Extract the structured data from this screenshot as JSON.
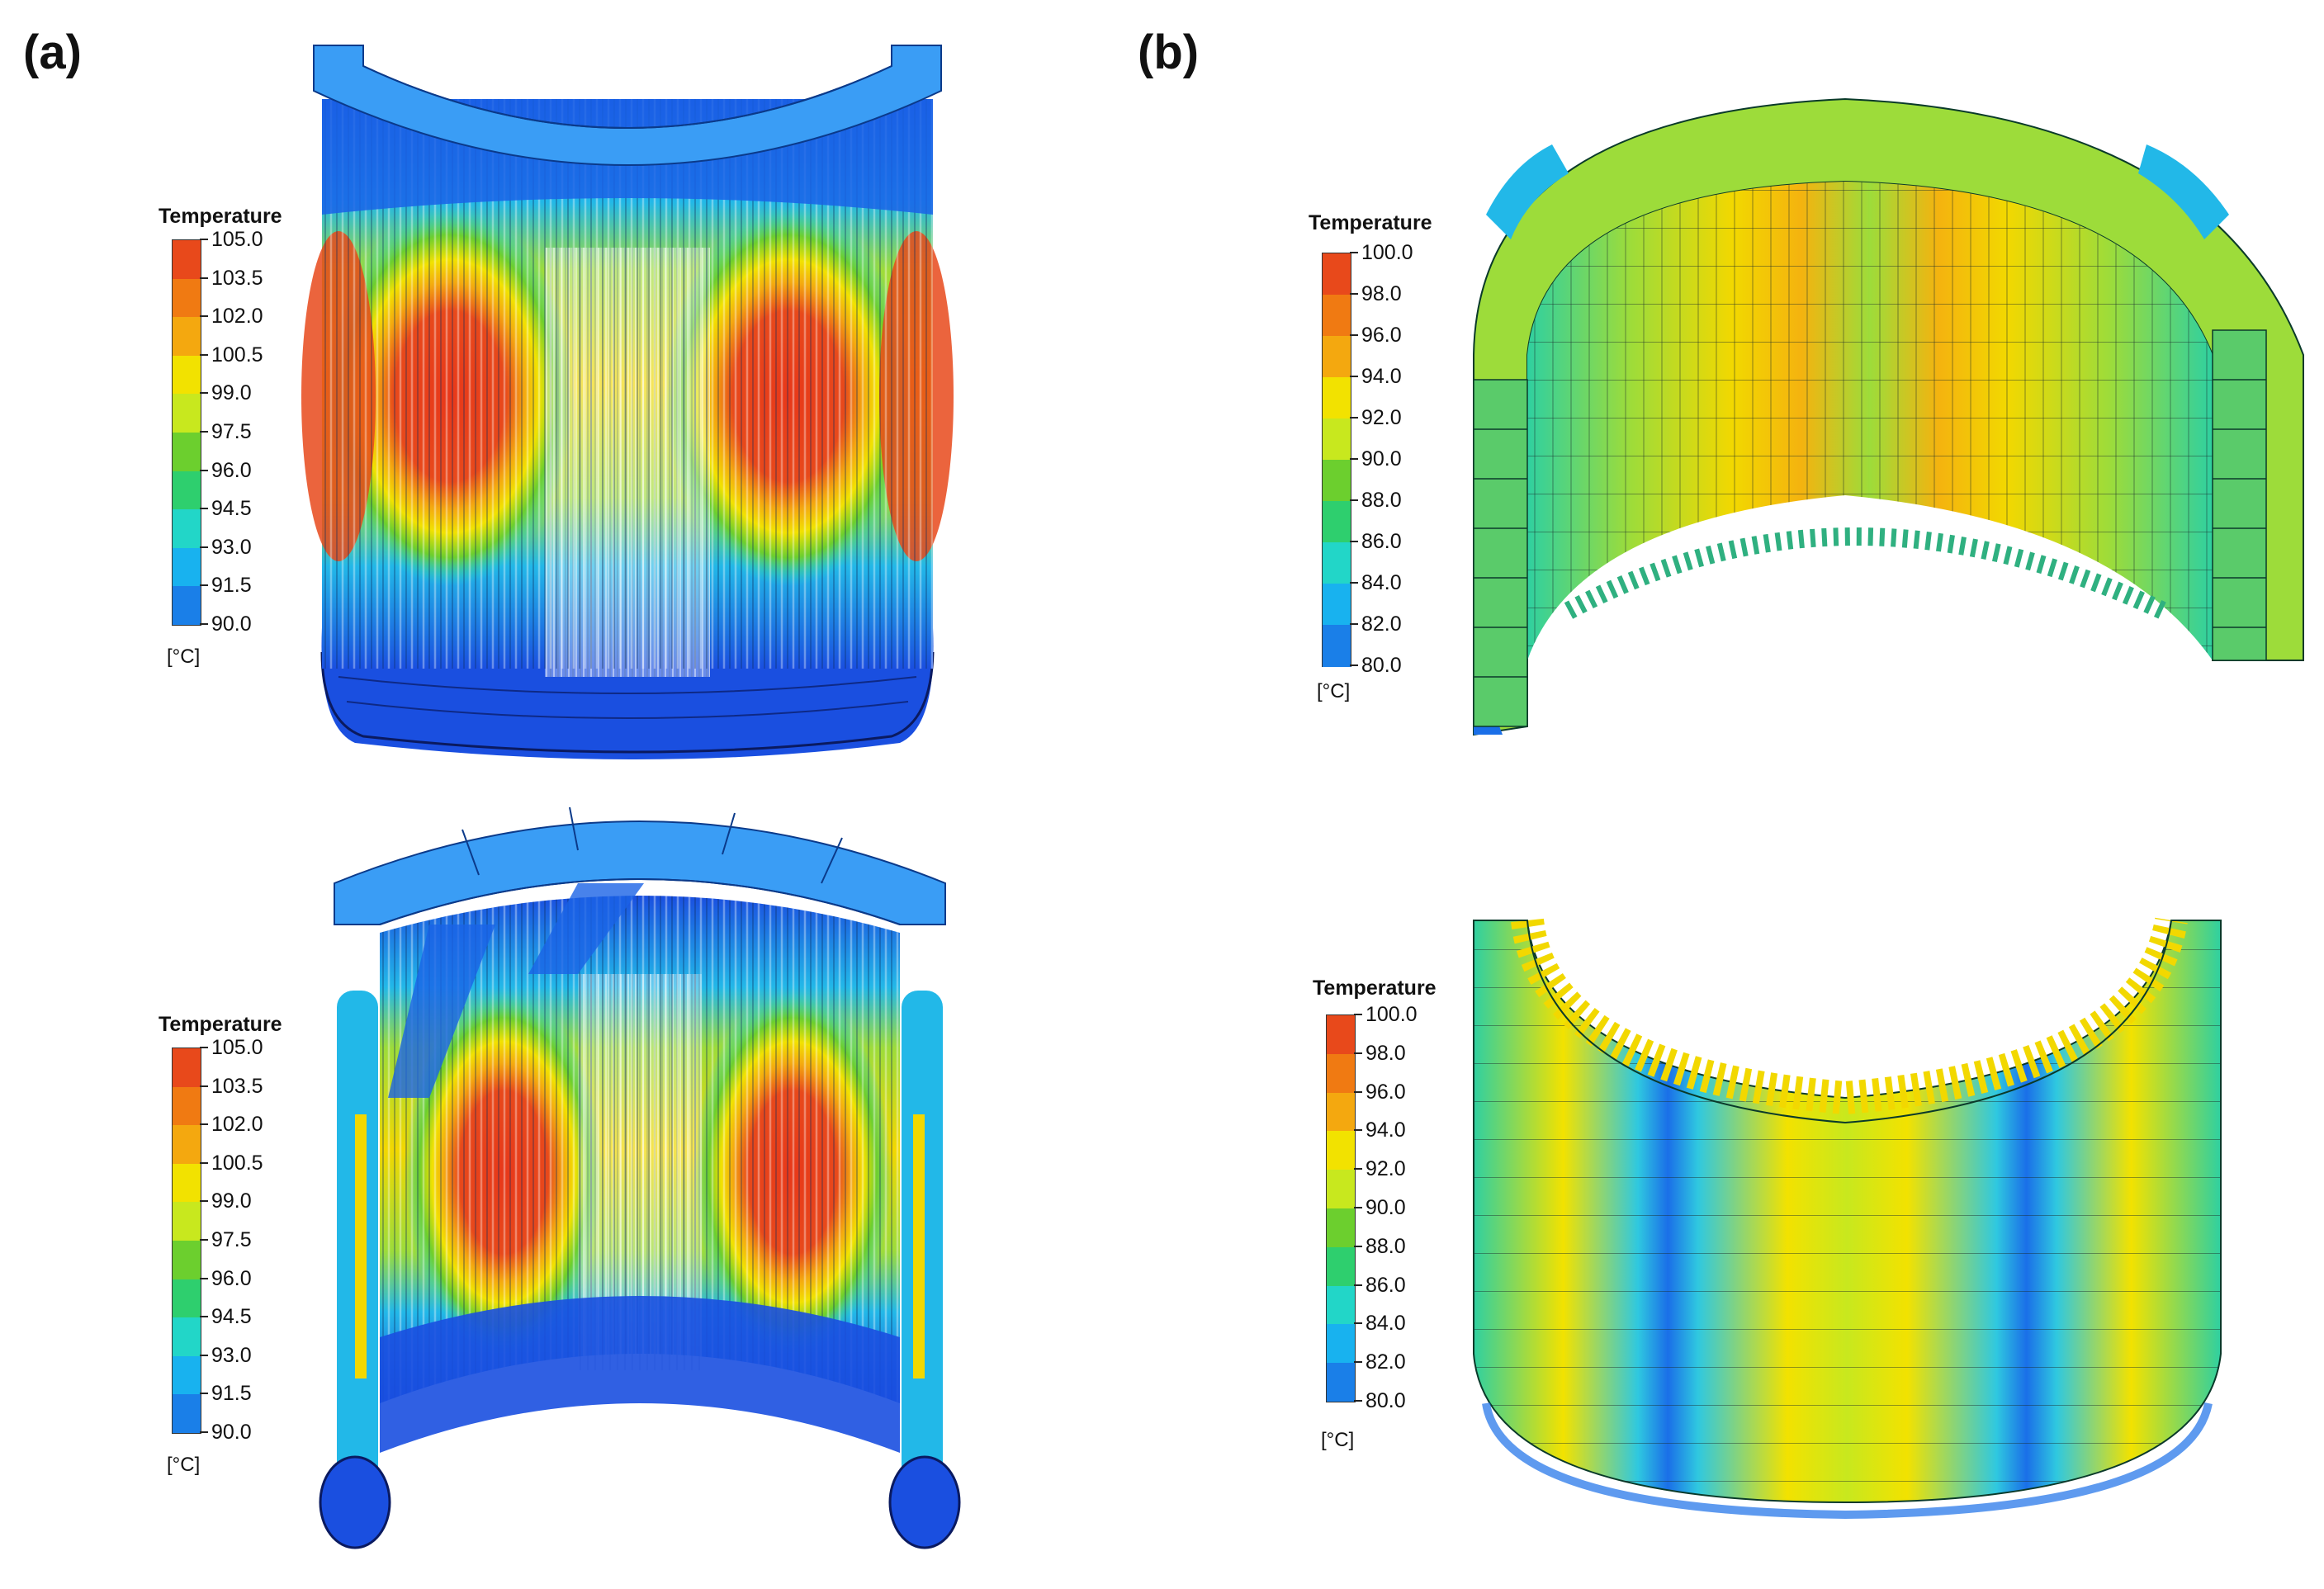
{
  "panels": [
    {
      "label": "(a)"
    },
    {
      "label": "(b)"
    }
  ],
  "legends": [
    {
      "title": "Temperature",
      "unit": "[°C]",
      "ticks": [
        "105.0",
        "103.5",
        "102.0",
        "100.5",
        "99.0",
        "97.5",
        "96.0",
        "94.5",
        "93.0",
        "91.5",
        "90.0"
      ]
    },
    {
      "title": "Temperature",
      "unit": "[°C]",
      "ticks": [
        "105.0",
        "103.5",
        "102.0",
        "100.5",
        "99.0",
        "97.5",
        "96.0",
        "94.5",
        "93.0",
        "91.5",
        "90.0"
      ]
    },
    {
      "title": "Temperature",
      "unit": "[°C]",
      "ticks": [
        "100.0",
        "98.0",
        "96.0",
        "94.0",
        "92.0",
        "90.0",
        "88.0",
        "86.0",
        "84.0",
        "82.0",
        "80.0"
      ]
    },
    {
      "title": "Temperature",
      "unit": "[°C]",
      "ticks": [
        "100.0",
        "98.0",
        "96.0",
        "94.0",
        "92.0",
        "90.0",
        "88.0",
        "86.0",
        "84.0",
        "82.0",
        "80.0"
      ]
    }
  ],
  "colors": {
    "scale": [
      "#e8491b",
      "#f07a12",
      "#f4a80f",
      "#f2e200",
      "#c8e81e",
      "#6ccf2e",
      "#2ecf6e",
      "#22d6c8",
      "#18b2ef",
      "#1a7fe8",
      "#1a3fe0"
    ],
    "accent_blue": "#3a9df5",
    "hot": "#e83a15"
  }
}
